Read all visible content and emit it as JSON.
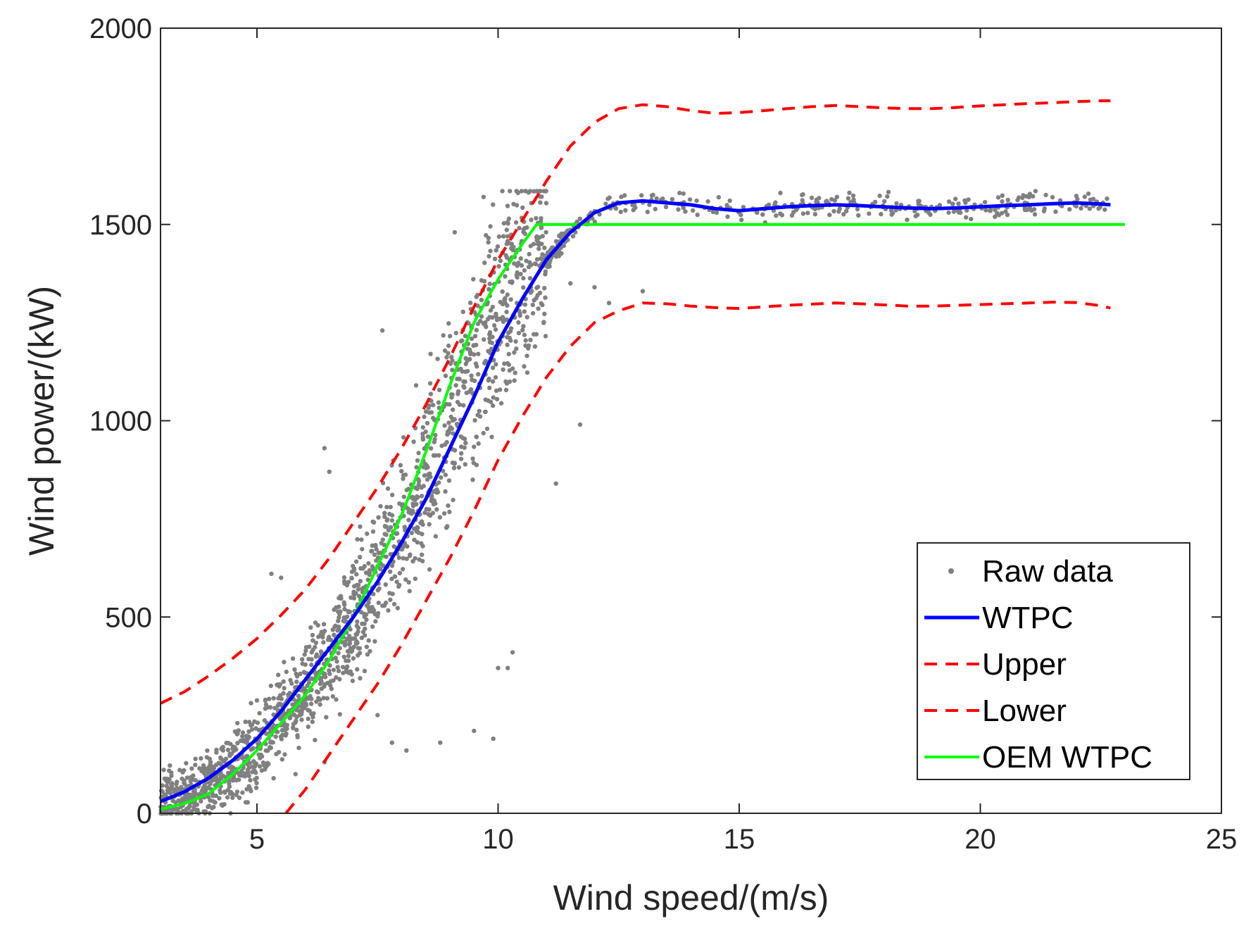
{
  "chart_data": {
    "type": "line",
    "title": "",
    "xlabel": "Wind speed/(m/s)",
    "ylabel": "Wind power/(kW)",
    "xlim": [
      3,
      25
    ],
    "ylim": [
      0,
      2000
    ],
    "xticks": [
      5,
      10,
      15,
      20,
      25
    ],
    "yticks": [
      0,
      500,
      1000,
      1500,
      2000
    ],
    "grid": false,
    "legend_position": "bottom-right",
    "colors": {
      "raw": "#808080",
      "wtpc": "#0000ff",
      "bounds": "#ff0000",
      "oem": "#00ff00",
      "axis": "#262626"
    },
    "series": [
      {
        "name": "Raw data",
        "style": "dots",
        "color": "#808080",
        "description_points": "scatter around WTPC",
        "outliers": [
          [
            5.3,
            610
          ],
          [
            5.5,
            600
          ],
          [
            6.4,
            930
          ],
          [
            6.5,
            870
          ],
          [
            7.6,
            1230
          ],
          [
            8.3,
            1090
          ],
          [
            8.6,
            1170
          ],
          [
            9.1,
            1480
          ],
          [
            9.7,
            1570
          ],
          [
            10.0,
            370
          ],
          [
            10.3,
            410
          ],
          [
            10.2,
            370
          ],
          [
            9.9,
            190
          ],
          [
            9.5,
            210
          ],
          [
            8.8,
            180
          ],
          [
            11.2,
            840
          ],
          [
            11.7,
            990
          ],
          [
            7.5,
            250
          ],
          [
            7.8,
            180
          ],
          [
            8.1,
            160
          ],
          [
            6.4,
            130
          ],
          [
            5.8,
            100
          ],
          [
            10.7,
            1330
          ],
          [
            11.5,
            1350
          ],
          [
            12.0,
            1340
          ],
          [
            12.3,
            1300
          ],
          [
            13.0,
            1330
          ]
        ]
      },
      {
        "name": "WTPC",
        "color": "#0000ff",
        "x": [
          3,
          3.5,
          4,
          4.5,
          5,
          5.5,
          6,
          6.5,
          7,
          7.5,
          8,
          8.5,
          9,
          9.5,
          10,
          10.5,
          11,
          11.5,
          12,
          12.5,
          13,
          13.5,
          14,
          14.5,
          15,
          15.5,
          16,
          16.5,
          17,
          17.5,
          18,
          18.5,
          19,
          19.5,
          20,
          20.5,
          21,
          21.5,
          22,
          22.5,
          22.7
        ],
        "values": [
          30,
          55,
          90,
          135,
          190,
          260,
          340,
          420,
          500,
          590,
          690,
          800,
          930,
          1060,
          1200,
          1310,
          1410,
          1480,
          1530,
          1555,
          1560,
          1555,
          1550,
          1540,
          1535,
          1540,
          1545,
          1548,
          1550,
          1548,
          1545,
          1542,
          1540,
          1542,
          1545,
          1548,
          1550,
          1553,
          1555,
          1552,
          1550
        ]
      },
      {
        "name": "Upper",
        "color": "#ff0000",
        "dashed": true,
        "x": [
          3,
          3.5,
          4,
          4.5,
          5,
          5.5,
          6,
          6.5,
          7,
          7.5,
          8,
          8.5,
          9,
          9.5,
          10,
          10.5,
          11,
          11.5,
          12,
          12.5,
          13,
          13.5,
          14,
          14.5,
          15,
          15.5,
          16,
          16.5,
          17,
          17.5,
          18,
          18.5,
          19,
          19.5,
          20,
          20.5,
          21,
          21.5,
          22,
          22.5,
          22.7
        ],
        "values": [
          280,
          310,
          350,
          395,
          445,
          505,
          570,
          650,
          740,
          830,
          930,
          1040,
          1160,
          1290,
          1410,
          1510,
          1610,
          1700,
          1760,
          1795,
          1805,
          1800,
          1790,
          1783,
          1785,
          1790,
          1795,
          1800,
          1803,
          1800,
          1797,
          1795,
          1795,
          1798,
          1802,
          1805,
          1808,
          1810,
          1813,
          1815,
          1815
        ]
      },
      {
        "name": "Lower",
        "color": "#ff0000",
        "dashed": true,
        "x": [
          5.6,
          6,
          6.5,
          7,
          7.5,
          8,
          8.5,
          9,
          9.5,
          10,
          10.5,
          11,
          11.5,
          12,
          12.5,
          13,
          13.5,
          14,
          14.5,
          15,
          15.5,
          16,
          16.5,
          17,
          17.5,
          18,
          18.5,
          19,
          19.5,
          20,
          20.5,
          21,
          21.5,
          22,
          22.5,
          22.7
        ],
        "values": [
          0,
          60,
          150,
          240,
          330,
          430,
          540,
          650,
          770,
          900,
          1010,
          1110,
          1190,
          1250,
          1280,
          1300,
          1298,
          1292,
          1288,
          1286,
          1290,
          1294,
          1297,
          1300,
          1298,
          1295,
          1292,
          1292,
          1294,
          1296,
          1298,
          1300,
          1302,
          1301,
          1293,
          1287
        ]
      },
      {
        "name": "OEM WTPC",
        "color": "#00ff00",
        "x": [
          3,
          3.5,
          4,
          4.5,
          5,
          5.5,
          6,
          6.5,
          7,
          7.5,
          8,
          8.5,
          9,
          9.5,
          10,
          10.5,
          10.8,
          11,
          12,
          14,
          16,
          18,
          20,
          22,
          23
        ],
        "values": [
          10,
          25,
          50,
          100,
          160,
          230,
          300,
          390,
          500,
          630,
          760,
          920,
          1090,
          1250,
          1360,
          1450,
          1500,
          1500,
          1500,
          1500,
          1500,
          1500,
          1500,
          1500,
          1500
        ]
      }
    ],
    "legend": [
      "Raw data",
      "WTPC",
      "Upper",
      "Lower",
      "OEM WTPC"
    ]
  }
}
